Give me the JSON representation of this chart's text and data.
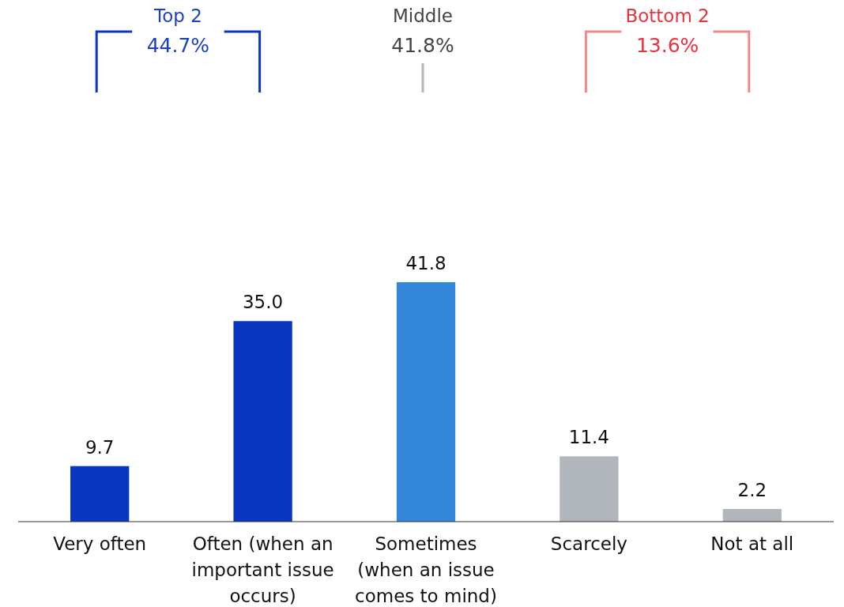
{
  "chart_data": {
    "type": "bar",
    "categories": [
      "Very often",
      "Often (when an\nimportant issue\noccurs)",
      "Sometimes\n(when an issue\ncomes to mind)",
      "Scarcely",
      "Not at all"
    ],
    "values": [
      9.7,
      35.0,
      41.8,
      11.4,
      2.2
    ],
    "value_labels": [
      "9.7",
      "35.0",
      "41.8",
      "11.4",
      "2.2"
    ],
    "colors": [
      "#0a36c0",
      "#0a36c0",
      "#3587dc",
      "#b1b6bd",
      "#b1b6bd"
    ],
    "annotations": [
      "Top 2",
      "44.7%",
      "Middle",
      "41.8%",
      "Bottom 2",
      "13.6%"
    ]
  }
}
